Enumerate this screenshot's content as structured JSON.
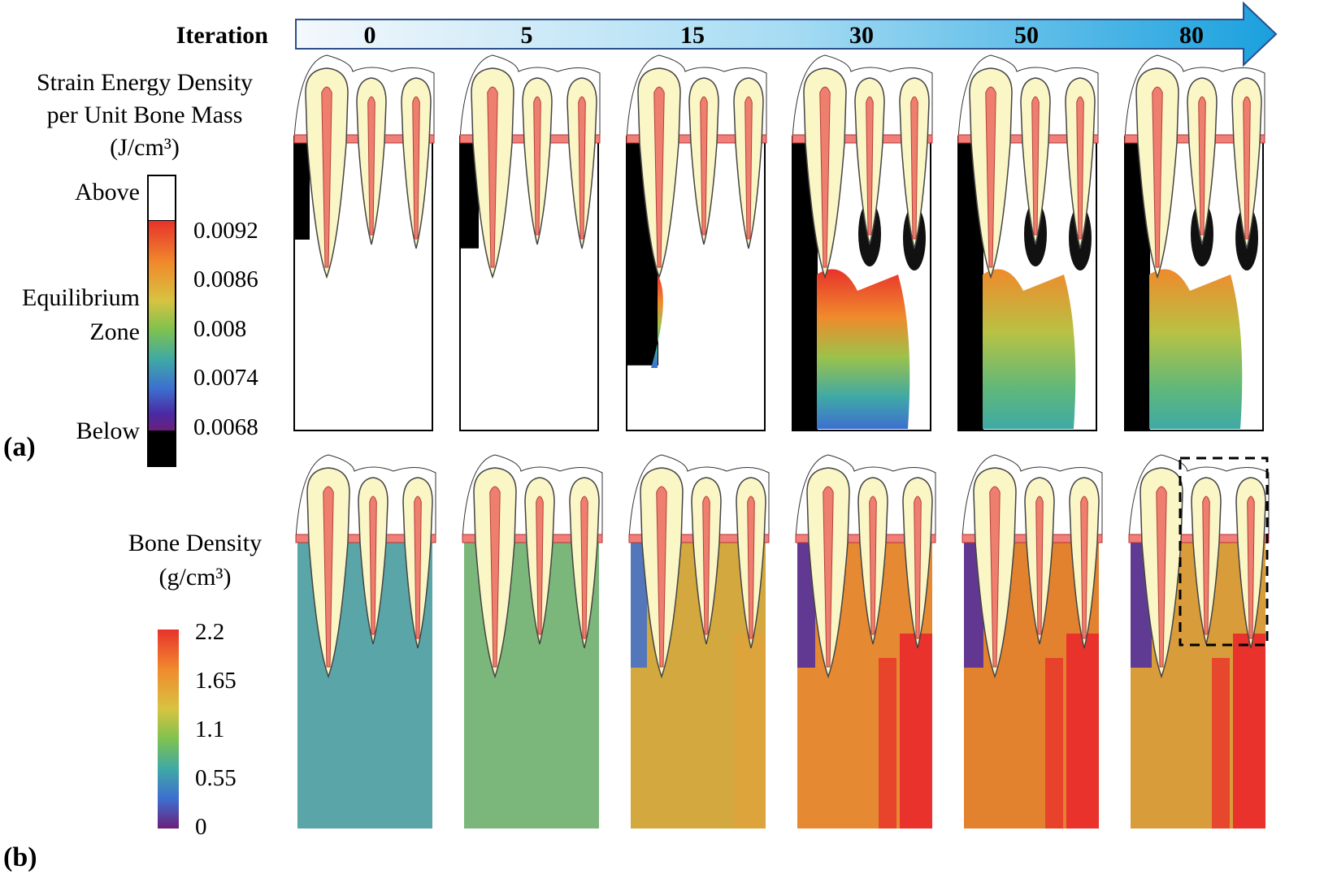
{
  "header": {
    "iteration_label": "Iteration",
    "iterations": [
      "0",
      "5",
      "15",
      "30",
      "50",
      "80"
    ],
    "arrow_colors": [
      "#f4f8fc",
      "#a7dcf3",
      "#1aa0de"
    ]
  },
  "panel_a": {
    "tag": "(a)",
    "title_lines": [
      "Strain Energy Density",
      "per Unit Bone Mass",
      "(J/cm³)"
    ],
    "side_labels": {
      "above": "Above",
      "equilibrium_line1": "Equilibrium",
      "equilibrium_line2": "Zone",
      "below": "Below"
    },
    "ticks": [
      "0.0092",
      "0.0086",
      "0.008",
      "0.0074",
      "0.0068"
    ],
    "colorbar_colors": [
      "#e8322b",
      "#f08a2c",
      "#d8c341",
      "#7ec24f",
      "#3fa9a5",
      "#3d6fd0",
      "#4a2aa3",
      "#6b1f7a"
    ],
    "above_color": "#ffffff",
    "below_color": "#000000",
    "state_by_iteration": [
      {
        "iteration": "0",
        "stimulus": "mostly above, below zone at left crest"
      },
      {
        "iteration": "5",
        "stimulus": "mostly above, below zone at left crest"
      },
      {
        "iteration": "15",
        "stimulus": "below zone extends down left side"
      },
      {
        "iteration": "30",
        "stimulus": "equilibrium zone spreads through lower bone"
      },
      {
        "iteration": "50",
        "stimulus": "equilibrium zone covers most of bone"
      },
      {
        "iteration": "80",
        "stimulus": "equilibrium zone covers most of bone"
      }
    ]
  },
  "panel_b": {
    "tag": "(b)",
    "title_lines": [
      "Bone Density",
      "(g/cm³)"
    ],
    "ticks": [
      "2.2",
      "1.65",
      "1.1",
      "0.55",
      "0"
    ],
    "colorbar_colors": [
      "#e8322b",
      "#f08a2c",
      "#d8c341",
      "#7ec24f",
      "#3fa9a5",
      "#3d6fd0",
      "#6b1f7a"
    ],
    "base_fill_by_iteration": [
      "#5aa5a8",
      "#7bb77a",
      "#d2a83f",
      "#e58a33",
      "#e2822f",
      "#d99c3a"
    ],
    "highlight_box_iteration": "80"
  }
}
